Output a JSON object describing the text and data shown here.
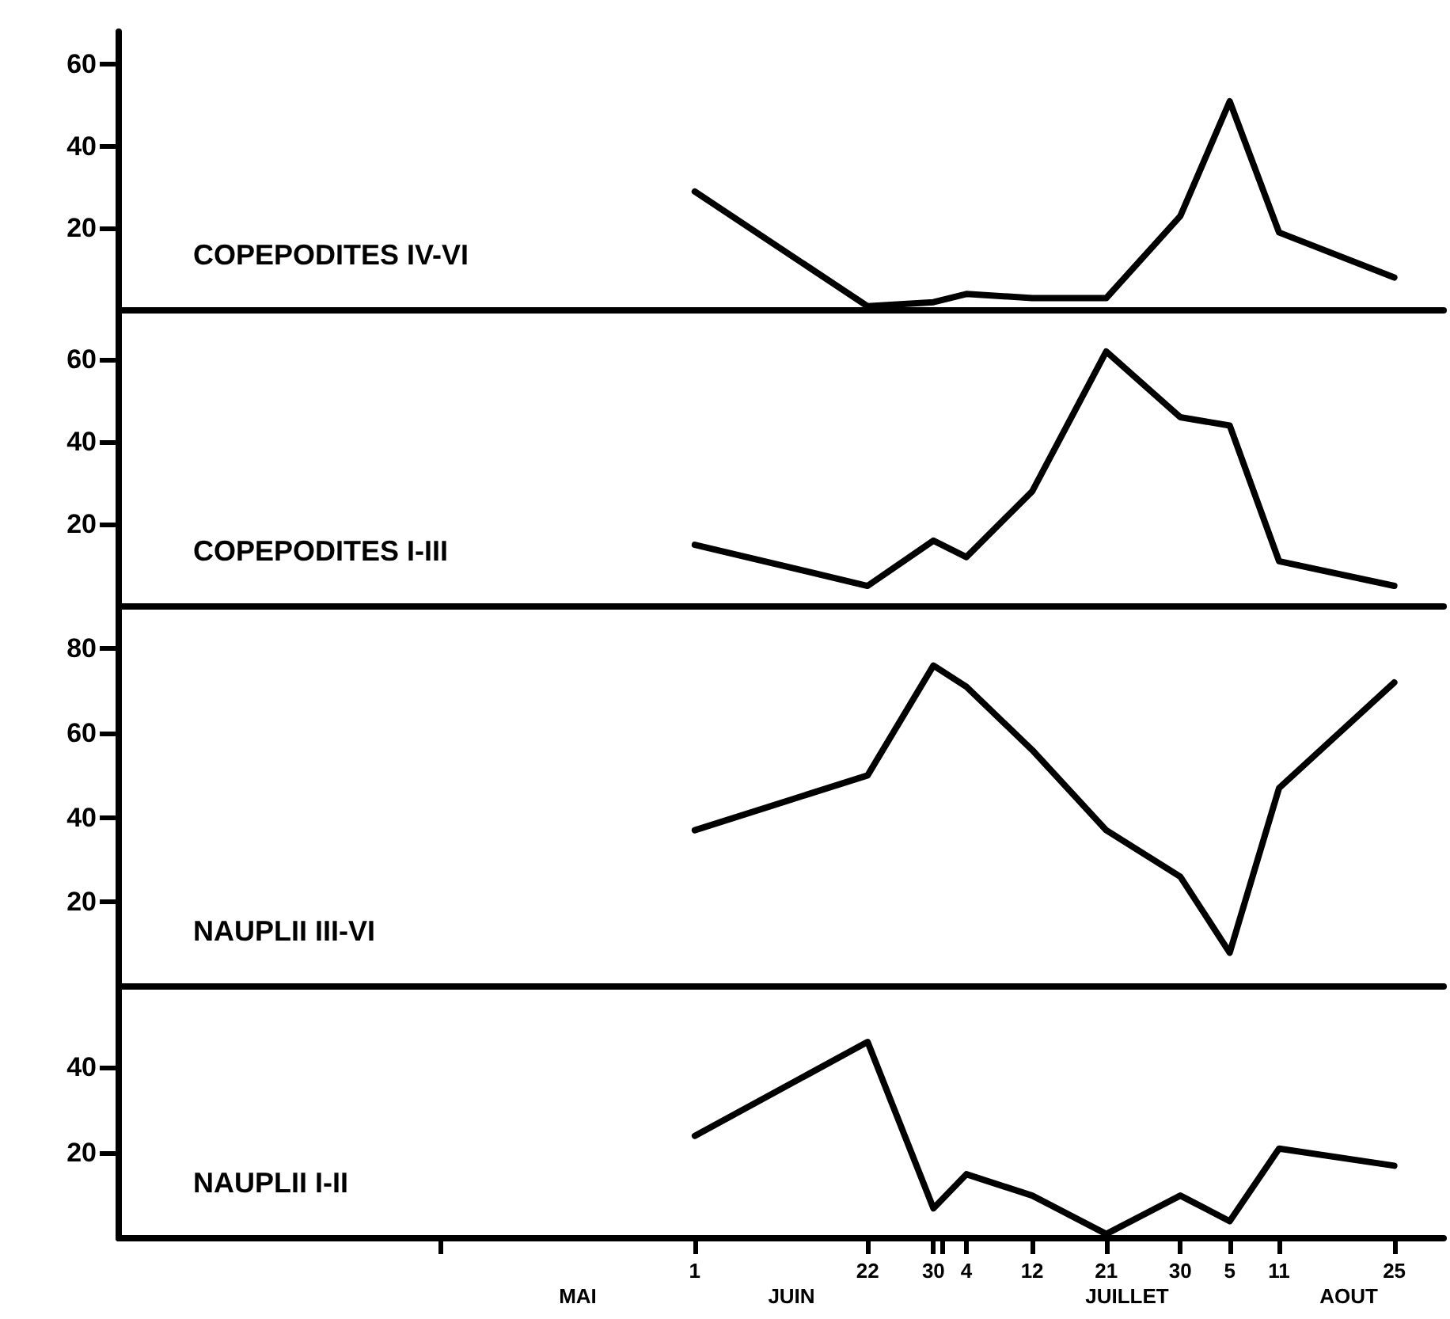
{
  "chart_data": [
    {
      "type": "line",
      "annotations": [
        "COPEPODITES IV-VI"
      ],
      "x": [
        "--06-01",
        "--06-22",
        "--06-30",
        "--07-04",
        "--07-12",
        "--07-21",
        "--07-30",
        "--08-05",
        "--08-11",
        "--08-25"
      ],
      "series": [
        {
          "color": "#000000",
          "values": [
            29,
            1,
            2,
            4,
            3,
            3,
            23,
            51,
            19,
            8
          ]
        }
      ],
      "xlim": [
        "--03-23",
        "--08-31"
      ],
      "ylim": [
        0,
        68
      ],
      "yticks": [
        20,
        40,
        60
      ],
      "tick_labels": "y",
      "grid": false,
      "marker": "none",
      "line_style": "solid"
    },
    {
      "type": "line",
      "annotations": [
        "COPEPODITES I-III"
      ],
      "x": [
        "--06-01",
        "--06-22",
        "--06-30",
        "--07-04",
        "--07-12",
        "--07-21",
        "--07-30",
        "--08-05",
        "--08-11",
        "--08-25"
      ],
      "series": [
        {
          "color": "#000000",
          "values": [
            15,
            5,
            16,
            12,
            28,
            62,
            46,
            44,
            11,
            5
          ]
        }
      ],
      "xlim": [
        "--03-23",
        "--08-31"
      ],
      "ylim": [
        0,
        72
      ],
      "yticks": [
        20,
        40,
        60
      ],
      "tick_labels": "y",
      "grid": false,
      "marker": "none",
      "line_style": "solid"
    },
    {
      "type": "line",
      "annotations": [
        "NAUPLII III-VI"
      ],
      "x": [
        "--06-01",
        "--06-22",
        "--06-30",
        "--07-04",
        "--07-12",
        "--07-21",
        "--07-30",
        "--08-05",
        "--08-11",
        "--08-25"
      ],
      "series": [
        {
          "color": "#000000",
          "values": [
            37,
            50,
            76,
            71,
            56,
            37,
            26,
            8,
            47,
            72
          ]
        }
      ],
      "xlim": [
        "--03-23",
        "--08-31"
      ],
      "ylim": [
        0,
        90
      ],
      "yticks": [
        20,
        40,
        60,
        80
      ],
      "tick_labels": "y",
      "grid": false,
      "marker": "none",
      "line_style": "solid"
    },
    {
      "type": "line",
      "annotations": [
        "NAUPLII I-II",
        "MAI",
        "JUIN",
        "JUILLET",
        "AOUT"
      ],
      "x": [
        "--06-01",
        "--06-22",
        "--06-30",
        "--07-04",
        "--07-12",
        "--07-21",
        "--07-30",
        "--08-05",
        "--08-11",
        "--08-25"
      ],
      "series": [
        {
          "color": "#000000",
          "values": [
            24,
            46,
            7,
            15,
            10,
            1,
            10,
            4,
            21,
            17
          ]
        }
      ],
      "xlim": [
        "--03-23",
        "--08-31"
      ],
      "ylim": [
        0,
        59
      ],
      "yticks": [
        20,
        40
      ],
      "xticks": [
        {
          "value": "--05-01",
          "label": null
        },
        {
          "value": "--06-01",
          "label": "1"
        },
        {
          "value": "--06-22",
          "label": "22"
        },
        {
          "value": "--06-30",
          "label": "30"
        },
        {
          "value": "--07-01",
          "label": null
        },
        {
          "value": "--07-04",
          "label": "4"
        },
        {
          "value": "--07-12",
          "label": "12"
        },
        {
          "value": "--07-21",
          "label": "21"
        },
        {
          "value": "--07-30",
          "label": "30"
        },
        {
          "value": "--08-05",
          "label": "5"
        },
        {
          "value": "--08-11",
          "label": "11"
        },
        {
          "value": "--08-25",
          "label": "25"
        }
      ],
      "grid": false,
      "marker": "none",
      "line_style": "solid"
    }
  ]
}
